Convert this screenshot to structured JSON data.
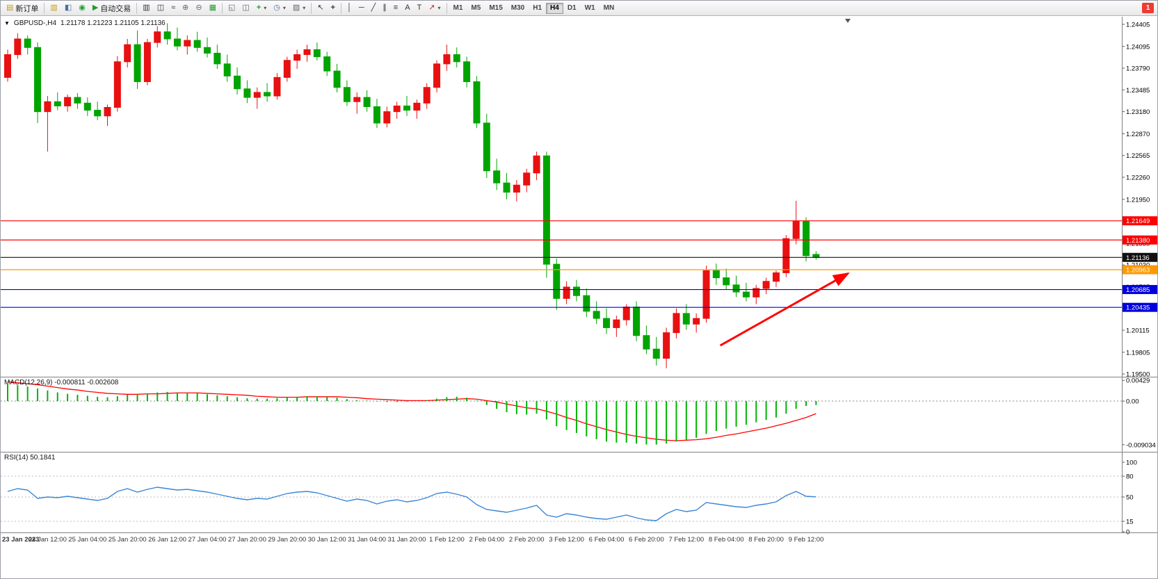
{
  "toolbar": {
    "new_order_label": "新订单",
    "autotrading_label": "自动交易",
    "timeframes": [
      "M1",
      "M5",
      "M15",
      "M30",
      "H1",
      "H4",
      "D1",
      "W1",
      "MN"
    ],
    "active_timeframe": "H4",
    "notification_count": "1"
  },
  "icons": {
    "new_order": "▤",
    "profiles": "▥",
    "open_chart": "◧",
    "community": "◉",
    "autotrading": "▶",
    "bar_chart": "▥",
    "candlestick": "◫",
    "line_chart": "≈",
    "zoom_in": "⊕",
    "zoom_out": "⊖",
    "tile_windows": "▦",
    "cascade": "◱",
    "tile_horizontal": "◫",
    "indicators": "+",
    "periods": "◷",
    "templates": "▨",
    "cursor": "↖",
    "crosshair": "+",
    "vertical_line": "│",
    "horizontal_line": "─",
    "trendline": "╱",
    "channel": "∥",
    "fibonacci": "≡",
    "text": "A",
    "text_label": "T",
    "arrows": "↗",
    "dropdown": "▾",
    "collapse": "▼"
  },
  "chart": {
    "symbol_label": "GBPUSD-,H4",
    "ohlc_text": "1.21178 1.21223 1.21105 1.21136"
  },
  "indicators": {
    "macd_label": "MACD(12,26,9) -0.000811 -0.002608",
    "rsi_label": "RSI(14) 50.1841"
  },
  "chart_data": {
    "type": "candlestick",
    "symbol": "GBPUSD-",
    "timeframe": "H4",
    "colors": {
      "up": "#e81010",
      "down": "#00a400",
      "macd_hist": "#00b400",
      "macd_signal": "#ff0000",
      "rsi_line": "#3a86d4",
      "arrow": "#ff0000"
    },
    "price_axis": {
      "top_value": 1.24512,
      "bottom_value": 1.19462,
      "labels": [
        "1.24405",
        "1.24095",
        "1.23790",
        "1.23485",
        "1.23180",
        "1.22870",
        "1.22565",
        "1.22260",
        "1.21950",
        "1.21640",
        "1.21335",
        "1.21030",
        "1.20725",
        "1.20420",
        "1.20115",
        "1.19805",
        "1.19500"
      ]
    },
    "candles": [
      [
        1.2366,
        1.2405,
        1.236,
        1.2398
      ],
      [
        1.2398,
        1.2428,
        1.2392,
        1.242
      ],
      [
        1.242,
        1.2425,
        1.2398,
        1.2408
      ],
      [
        1.2408,
        1.2415,
        1.2302,
        1.2318
      ],
      [
        1.2318,
        1.234,
        1.2262,
        1.2332
      ],
      [
        1.2332,
        1.2345,
        1.232,
        1.2326
      ],
      [
        1.2326,
        1.2342,
        1.2318,
        1.2338
      ],
      [
        1.2338,
        1.2344,
        1.2322,
        1.233
      ],
      [
        1.233,
        1.2338,
        1.2312,
        1.232
      ],
      [
        1.232,
        1.2332,
        1.2306,
        1.2312
      ],
      [
        1.2312,
        1.2328,
        1.2298,
        1.2324
      ],
      [
        1.2324,
        1.2396,
        1.2318,
        1.2388
      ],
      [
        1.2388,
        1.242,
        1.238,
        1.2412
      ],
      [
        1.2412,
        1.2432,
        1.235,
        1.236
      ],
      [
        1.236,
        1.242,
        1.2355,
        1.2415
      ],
      [
        1.2415,
        1.2438,
        1.2408,
        1.243
      ],
      [
        1.243,
        1.2442,
        1.2412,
        1.242
      ],
      [
        1.242,
        1.2436,
        1.2404,
        1.241
      ],
      [
        1.241,
        1.2425,
        1.2398,
        1.2418
      ],
      [
        1.2418,
        1.243,
        1.2402,
        1.2408
      ],
      [
        1.2408,
        1.2422,
        1.2394,
        1.24
      ],
      [
        1.24,
        1.2412,
        1.2378,
        1.2385
      ],
      [
        1.2385,
        1.2398,
        1.236,
        1.2368
      ],
      [
        1.2368,
        1.238,
        1.2342,
        1.235
      ],
      [
        1.235,
        1.2362,
        1.233,
        1.2338
      ],
      [
        1.2338,
        1.2352,
        1.2322,
        1.2345
      ],
      [
        1.2345,
        1.2358,
        1.2332,
        1.234
      ],
      [
        1.234,
        1.2372,
        1.2335,
        1.2366
      ],
      [
        1.2366,
        1.2395,
        1.236,
        1.239
      ],
      [
        1.239,
        1.2405,
        1.2378,
        1.2398
      ],
      [
        1.2398,
        1.2412,
        1.2388,
        1.2405
      ],
      [
        1.2405,
        1.2415,
        1.239,
        1.2395
      ],
      [
        1.2395,
        1.2402,
        1.2368,
        1.2375
      ],
      [
        1.2375,
        1.2385,
        1.2345,
        1.2352
      ],
      [
        1.2352,
        1.2362,
        1.2326,
        1.2332
      ],
      [
        1.2332,
        1.2345,
        1.2315,
        1.2338
      ],
      [
        1.2338,
        1.2348,
        1.2318,
        1.2325
      ],
      [
        1.2325,
        1.2336,
        1.2295,
        1.2302
      ],
      [
        1.2302,
        1.2325,
        1.2296,
        1.2318
      ],
      [
        1.2318,
        1.2332,
        1.2308,
        1.2326
      ],
      [
        1.2326,
        1.234,
        1.2312,
        1.232
      ],
      [
        1.232,
        1.2335,
        1.2308,
        1.233
      ],
      [
        1.233,
        1.2358,
        1.2322,
        1.2352
      ],
      [
        1.2352,
        1.239,
        1.2345,
        1.2385
      ],
      [
        1.2385,
        1.2412,
        1.2375,
        1.2398
      ],
      [
        1.2398,
        1.2408,
        1.238,
        1.2388
      ],
      [
        1.2388,
        1.2395,
        1.2352,
        1.236
      ],
      [
        1.236,
        1.2368,
        1.2295,
        1.2302
      ],
      [
        1.2302,
        1.2315,
        1.2225,
        1.2235
      ],
      [
        1.2235,
        1.2252,
        1.2208,
        1.2218
      ],
      [
        1.2218,
        1.2232,
        1.2195,
        1.2205
      ],
      [
        1.2205,
        1.2222,
        1.2192,
        1.2215
      ],
      [
        1.2215,
        1.2238,
        1.2205,
        1.2232
      ],
      [
        1.2232,
        1.2262,
        1.2222,
        1.2256
      ],
      [
        1.2256,
        1.2262,
        1.2085,
        1.2104
      ],
      [
        1.2104,
        1.2112,
        1.204,
        1.2056
      ],
      [
        1.2056,
        1.208,
        1.2048,
        1.2072
      ],
      [
        1.2072,
        1.2082,
        1.2052,
        1.206
      ],
      [
        1.206,
        1.207,
        1.203,
        1.2038
      ],
      [
        1.2038,
        1.2052,
        1.202,
        1.2028
      ],
      [
        1.2028,
        1.2042,
        1.2006,
        1.2015
      ],
      [
        1.2015,
        1.2032,
        1.2002,
        1.2026
      ],
      [
        1.2026,
        1.2048,
        1.2018,
        1.2044
      ],
      [
        1.2044,
        1.2052,
        1.1996,
        1.2004
      ],
      [
        1.2004,
        1.2018,
        1.1978,
        1.1985
      ],
      [
        1.1985,
        1.2002,
        1.1962,
        1.1972
      ],
      [
        1.1972,
        1.2015,
        1.1958,
        1.2008
      ],
      [
        1.2008,
        1.2042,
        1.2,
        1.2035
      ],
      [
        1.2035,
        1.2048,
        1.2012,
        1.202
      ],
      [
        1.202,
        1.2035,
        1.2008,
        1.2028
      ],
      [
        1.2028,
        1.2102,
        1.2022,
        1.2095
      ],
      [
        1.2095,
        1.2105,
        1.2075,
        1.2085
      ],
      [
        1.2085,
        1.2098,
        1.2068,
        1.2075
      ],
      [
        1.2075,
        1.2088,
        1.2058,
        1.2065
      ],
      [
        1.2065,
        1.2078,
        1.2052,
        1.2058
      ],
      [
        1.2058,
        1.2075,
        1.2048,
        1.207
      ],
      [
        1.207,
        1.2085,
        1.2062,
        1.208
      ],
      [
        1.208,
        1.2095,
        1.2072,
        1.2092
      ],
      [
        1.2092,
        1.2145,
        1.2086,
        1.214
      ],
      [
        1.214,
        1.2193,
        1.2132,
        1.2164
      ],
      [
        1.2164,
        1.217,
        1.2108,
        1.2116
      ],
      [
        1.21178,
        1.21223,
        1.21105,
        1.21136
      ]
    ],
    "hlines": [
      {
        "price": 1.21649,
        "label": "1.21649",
        "color": "#ff0000"
      },
      {
        "price": 1.2138,
        "label": "1.21380",
        "color": "#ff0000"
      },
      {
        "price": 1.21136,
        "label": "1.21136",
        "color": "#111111",
        "current": true
      },
      {
        "price": 1.20963,
        "label": "1.20963",
        "color": "#ff9900"
      },
      {
        "price": 1.20685,
        "label": "1.20685",
        "color": "#0000dd"
      },
      {
        "price": 1.20435,
        "label": "1.20435",
        "color": "#0000dd"
      }
    ],
    "arrow": {
      "from": [
        71.4,
        1.199
      ],
      "to": [
        84.2,
        1.2091
      ]
    },
    "macd": {
      "name": "MACD(12,26,9)",
      "values_text": "-0.000811 -0.002608",
      "range": [
        0.0049,
        -0.0105
      ],
      "axis_labels": [
        {
          "v": 0.00429,
          "text": "0.00429"
        },
        {
          "v": 0,
          "text": "0.00"
        },
        {
          "v": -0.009034,
          "text": "-0.009034"
        }
      ],
      "main": [
        0.0035,
        0.0033,
        0.003,
        0.0026,
        0.0022,
        0.0018,
        0.0015,
        0.0013,
        0.0011,
        0.0009,
        0.0008,
        0.001,
        0.0013,
        0.0014,
        0.0016,
        0.0018,
        0.0019,
        0.0018,
        0.0017,
        0.0016,
        0.0014,
        0.0012,
        0.001,
        0.0008,
        0.0006,
        0.0005,
        0.0005,
        0.0006,
        0.0008,
        0.0009,
        0.001,
        0.001,
        0.0009,
        0.0007,
        0.0004,
        0.0002,
        0.0001,
        -0.0001,
        -0.0002,
        -0.0002,
        -0.0001,
        0.0,
        0.0002,
        0.0005,
        0.0008,
        0.0009,
        0.0007,
        0.0001,
        -0.0008,
        -0.0016,
        -0.0023,
        -0.0027,
        -0.0028,
        -0.0026,
        -0.0038,
        -0.0052,
        -0.006,
        -0.0066,
        -0.0073,
        -0.0079,
        -0.0084,
        -0.0086,
        -0.0086,
        -0.0088,
        -0.009,
        -0.009,
        -0.0088,
        -0.0084,
        -0.008,
        -0.0076,
        -0.0068,
        -0.0062,
        -0.0057,
        -0.0053,
        -0.0049,
        -0.0044,
        -0.0039,
        -0.0034,
        -0.0026,
        -0.0016,
        -0.001,
        -0.000811
      ],
      "signal": [
        0.004,
        0.0038,
        0.0036,
        0.0034,
        0.0031,
        0.0028,
        0.0025,
        0.0023,
        0.002,
        0.0018,
        0.0016,
        0.0015,
        0.0014,
        0.0014,
        0.0015,
        0.0015,
        0.0016,
        0.0017,
        0.0017,
        0.0017,
        0.0016,
        0.0015,
        0.0014,
        0.0013,
        0.0012,
        0.001,
        0.0009,
        0.0008,
        0.0008,
        0.0008,
        0.0009,
        0.0009,
        0.0009,
        0.0009,
        0.0008,
        0.0007,
        0.0005,
        0.0004,
        0.0003,
        0.0002,
        0.0001,
        0.0001,
        0.0001,
        0.0002,
        0.0003,
        0.0004,
        0.0005,
        0.0004,
        0.0001,
        -0.0002,
        -0.0006,
        -0.001,
        -0.0014,
        -0.0016,
        -0.0021,
        -0.0027,
        -0.0034,
        -0.004,
        -0.0047,
        -0.0053,
        -0.0059,
        -0.0064,
        -0.0069,
        -0.0073,
        -0.0076,
        -0.0079,
        -0.0081,
        -0.0082,
        -0.0081,
        -0.008,
        -0.0078,
        -0.0075,
        -0.0071,
        -0.0068,
        -0.0064,
        -0.006,
        -0.0056,
        -0.0051,
        -0.0046,
        -0.004,
        -0.0034,
        -0.002608
      ]
    },
    "rsi": {
      "name": "RSI(14)",
      "value_text": "50.1841",
      "level_labels": [
        100,
        80,
        50,
        15,
        0
      ],
      "dashed_levels": [
        80,
        50,
        15
      ],
      "values": [
        58,
        62,
        60,
        48,
        50,
        49,
        51,
        49,
        47,
        45,
        48,
        58,
        62,
        57,
        61,
        64,
        62,
        60,
        61,
        59,
        57,
        54,
        51,
        48,
        46,
        48,
        47,
        51,
        55,
        57,
        58,
        56,
        52,
        48,
        44,
        47,
        45,
        40,
        44,
        46,
        43,
        45,
        49,
        55,
        57,
        54,
        50,
        39,
        32,
        30,
        28,
        31,
        34,
        38,
        24,
        21,
        26,
        24,
        21,
        19,
        18,
        21,
        24,
        20,
        17,
        16,
        26,
        32,
        29,
        31,
        42,
        40,
        38,
        36,
        35,
        38,
        40,
        43,
        52,
        58,
        51,
        50.1841
      ]
    },
    "time_labels": [
      "23 Jan 2023",
      "24 Jan 12:00",
      "25 Jan 04:00",
      "25 Jan 20:00",
      "26 Jan 12:00",
      "27 Jan 04:00",
      "27 Jan 20:00",
      "29 Jan 20:00",
      "30 Jan 12:00",
      "31 Jan 04:00",
      "31 Jan 20:00",
      "1 Feb 12:00",
      "2 Feb 04:00",
      "2 Feb 20:00",
      "3 Feb 12:00",
      "6 Feb 04:00",
      "6 Feb 20:00",
      "7 Feb 12:00",
      "8 Feb 04:00",
      "8 Feb 20:00",
      "9 Feb 12:00"
    ]
  }
}
